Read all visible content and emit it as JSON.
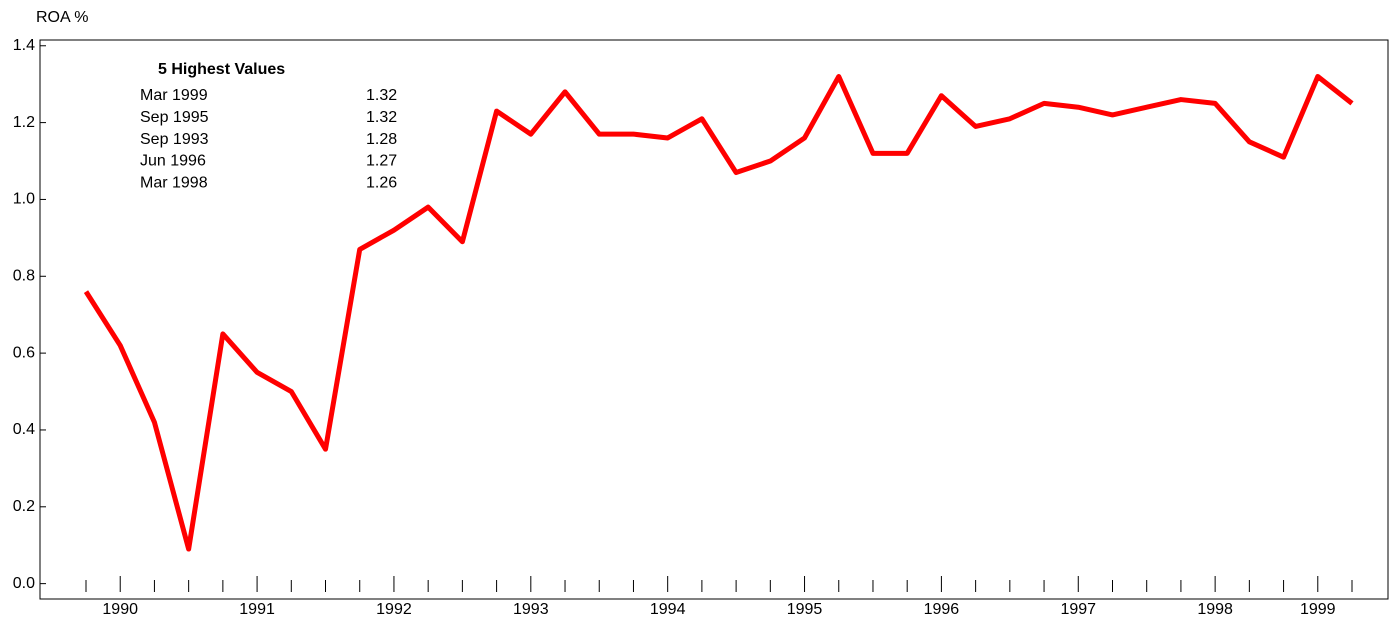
{
  "chart_data": {
    "type": "line",
    "y_label": "ROA %",
    "categories": [
      null,
      "1990",
      null,
      null,
      null,
      "1991",
      null,
      null,
      null,
      "1992",
      null,
      null,
      null,
      "1993",
      null,
      null,
      null,
      "1994",
      null,
      null,
      null,
      "1995",
      null,
      null,
      null,
      "1996",
      null,
      null,
      null,
      "1997",
      null,
      null,
      null,
      "1998",
      null,
      null,
      "1999",
      null
    ],
    "series": [
      {
        "name": "ROA",
        "color": "#ff0000",
        "values": [
          0.76,
          0.62,
          0.42,
          0.09,
          0.65,
          0.55,
          0.5,
          0.35,
          0.87,
          0.92,
          0.98,
          0.89,
          1.23,
          1.17,
          1.28,
          1.17,
          1.17,
          1.16,
          1.21,
          1.07,
          1.1,
          1.16,
          1.32,
          1.12,
          1.12,
          1.27,
          1.19,
          1.21,
          1.25,
          1.24,
          1.22,
          1.24,
          1.26,
          1.25,
          1.15,
          1.11,
          1.32,
          1.25
        ]
      }
    ],
    "ylim": [
      -0.04,
      1.415
    ],
    "yticks": [
      {
        "value": 0,
        "label": "0.0"
      },
      0.2,
      0.4,
      0.6,
      0.8,
      {
        "value": 1,
        "label": "1.0"
      },
      1.2,
      1.4
    ],
    "annotation": {
      "title": "5 Highest Values",
      "rows": [
        [
          "Mar 1999",
          1.32
        ],
        [
          "Sep 1995",
          1.32
        ],
        [
          "Sep 1993",
          1.28
        ],
        [
          "Jun 1996",
          1.27
        ],
        [
          "Mar 1998",
          1.26
        ]
      ]
    }
  }
}
